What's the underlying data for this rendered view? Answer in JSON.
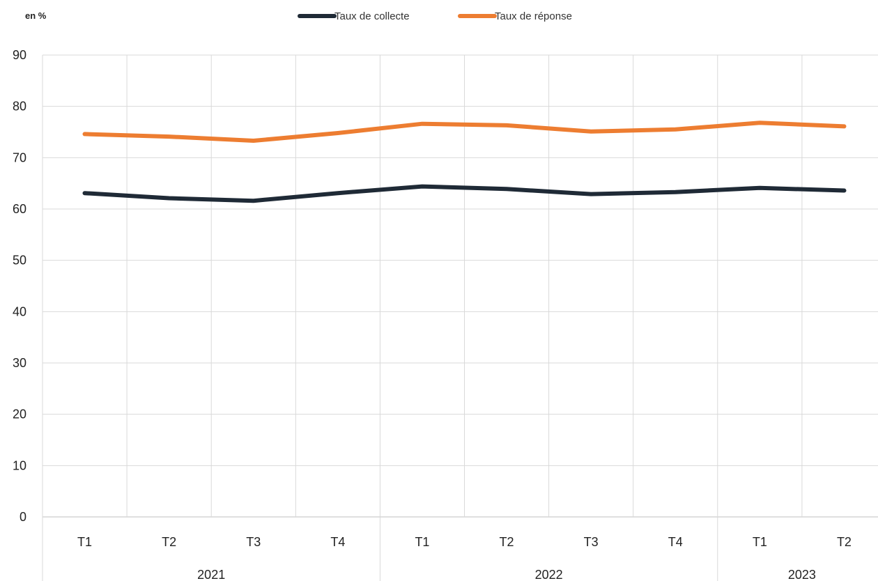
{
  "chart_data": {
    "type": "line",
    "unit_label": "en %",
    "title": "",
    "xlabel": "",
    "ylabel": "",
    "ylim": [
      0,
      90
    ],
    "y_ticks": [
      0,
      10,
      20,
      30,
      40,
      50,
      60,
      70,
      80,
      90
    ],
    "grid": true,
    "legend_position": "top-center",
    "categories": [
      "T1",
      "T2",
      "T3",
      "T4",
      "T1",
      "T2",
      "T3",
      "T4",
      "T1",
      "T2"
    ],
    "groups": [
      {
        "label": "2021",
        "count": 4
      },
      {
        "label": "2022",
        "count": 4
      },
      {
        "label": "2023",
        "count": 2
      }
    ],
    "series": [
      {
        "name": "Taux de collecte",
        "color": "#1f2a36",
        "values": [
          63.1,
          62.1,
          61.6,
          63.1,
          64.4,
          63.9,
          62.9,
          63.3,
          64.1,
          63.6
        ]
      },
      {
        "name": "Taux de réponse",
        "color": "#ed7d31",
        "values": [
          74.6,
          74.1,
          73.3,
          74.8,
          76.6,
          76.3,
          75.1,
          75.5,
          76.8,
          76.1
        ]
      }
    ]
  }
}
